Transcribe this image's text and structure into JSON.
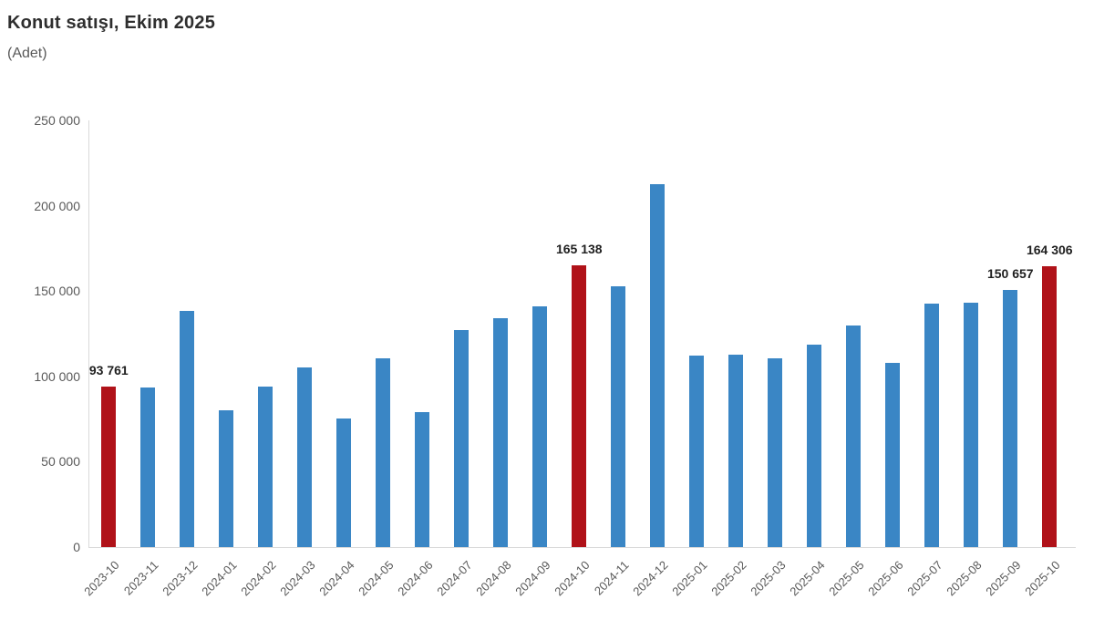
{
  "header": {
    "title": "Konut satışı, Ekim 2025",
    "subtitle": "(Adet)"
  },
  "chart_data": {
    "type": "bar",
    "title": "Konut satışı, Ekim 2025",
    "subtitle": "(Adet)",
    "xlabel": "",
    "ylabel": "Adet",
    "categories": [
      "2023-10",
      "2023-11",
      "2023-12",
      "2024-01",
      "2024-02",
      "2024-03",
      "2024-04",
      "2024-05",
      "2024-06",
      "2024-07",
      "2024-08",
      "2024-09",
      "2024-10",
      "2024-11",
      "2024-12",
      "2025-01",
      "2025-02",
      "2025-03",
      "2025-04",
      "2025-05",
      "2025-06",
      "2025-07",
      "2025-08",
      "2025-09",
      "2025-10"
    ],
    "values": [
      93761,
      93514,
      138577,
      80308,
      93902,
      105476,
      75569,
      110588,
      79313,
      127088,
      134155,
      140919,
      165138,
      153014,
      212637,
      112173,
      112818,
      110795,
      118359,
      130025,
      107723,
      142858,
      143319,
      150657,
      164306
    ],
    "highlight_indices": [
      0,
      12,
      24
    ],
    "data_labels": [
      {
        "index": 0,
        "text": "93 761"
      },
      {
        "index": 12,
        "text": "165 138"
      },
      {
        "index": 23,
        "text": "150 657"
      },
      {
        "index": 24,
        "text": "164 306"
      }
    ],
    "ylim": [
      0,
      250000
    ],
    "ytick_step": 50000,
    "ytick_labels": [
      "0",
      "50 000",
      "100 000",
      "150 000",
      "200 000",
      "250 000"
    ],
    "bar_color": "#3a86c5",
    "highlight_color": "#b01219",
    "axis_color": "#d9d9d9",
    "grid": false,
    "legend": false
  }
}
